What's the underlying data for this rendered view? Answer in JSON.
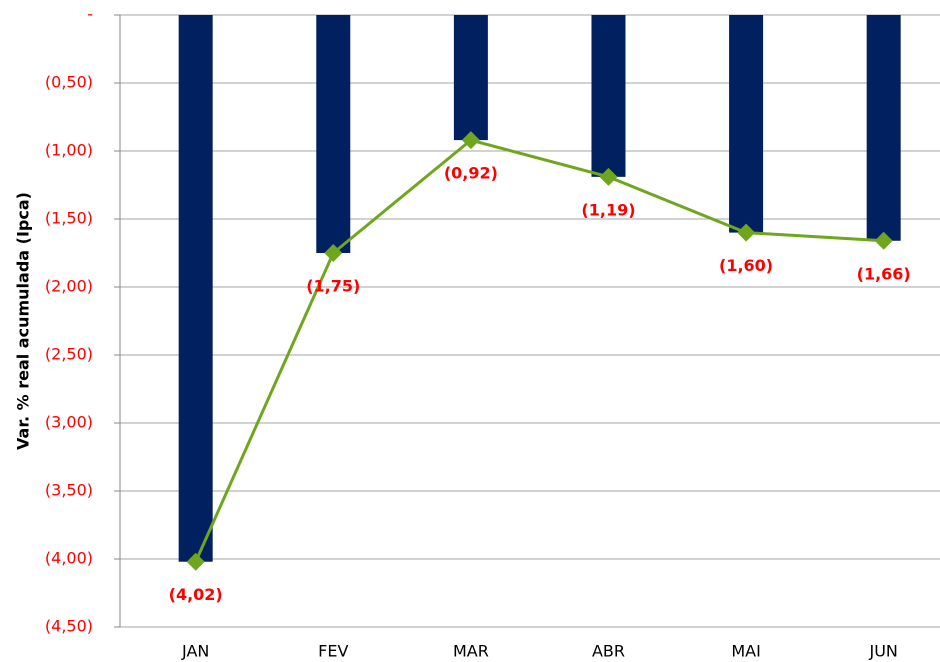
{
  "chart_data": {
    "type": "combo",
    "y_label": "Var. % real acumulada (Ipca)",
    "categories": [
      "JAN",
      "FEV",
      "MAR",
      "ABR",
      "MAI",
      "JUN"
    ],
    "series": [
      {
        "type": "bar",
        "color": "#002060",
        "values": [
          -4.02,
          -1.75,
          -0.92,
          -1.19,
          -1.6,
          -1.66
        ]
      },
      {
        "type": "line",
        "color": "#70a61e",
        "label_color": "#ff0000",
        "values": [
          -4.02,
          -1.75,
          -0.92,
          -1.19,
          -1.6,
          -1.66
        ],
        "value_labels": [
          "(4,02)",
          "(1,75)",
          "(0,92)",
          "(1,19)",
          "(1,60)",
          "(1,66)"
        ]
      }
    ],
    "ylim": [
      -4.5,
      0
    ],
    "yticks": [
      {
        "value": 0,
        "label": "-"
      },
      {
        "value": -0.5,
        "label": "(0,50)"
      },
      {
        "value": -1,
        "label": "(1,00)"
      },
      {
        "value": -1.5,
        "label": "(1,50)"
      },
      {
        "value": -2,
        "label": "(2,00)"
      },
      {
        "value": -2.5,
        "label": "(2,50)"
      },
      {
        "value": -3,
        "label": "(3,00)"
      },
      {
        "value": -3.5,
        "label": "(3,50)"
      },
      {
        "value": -4,
        "label": "(4,00)"
      },
      {
        "value": -4.5,
        "label": "(4,50)"
      }
    ],
    "tick_label_color": "#ff0000",
    "grid": true
  }
}
